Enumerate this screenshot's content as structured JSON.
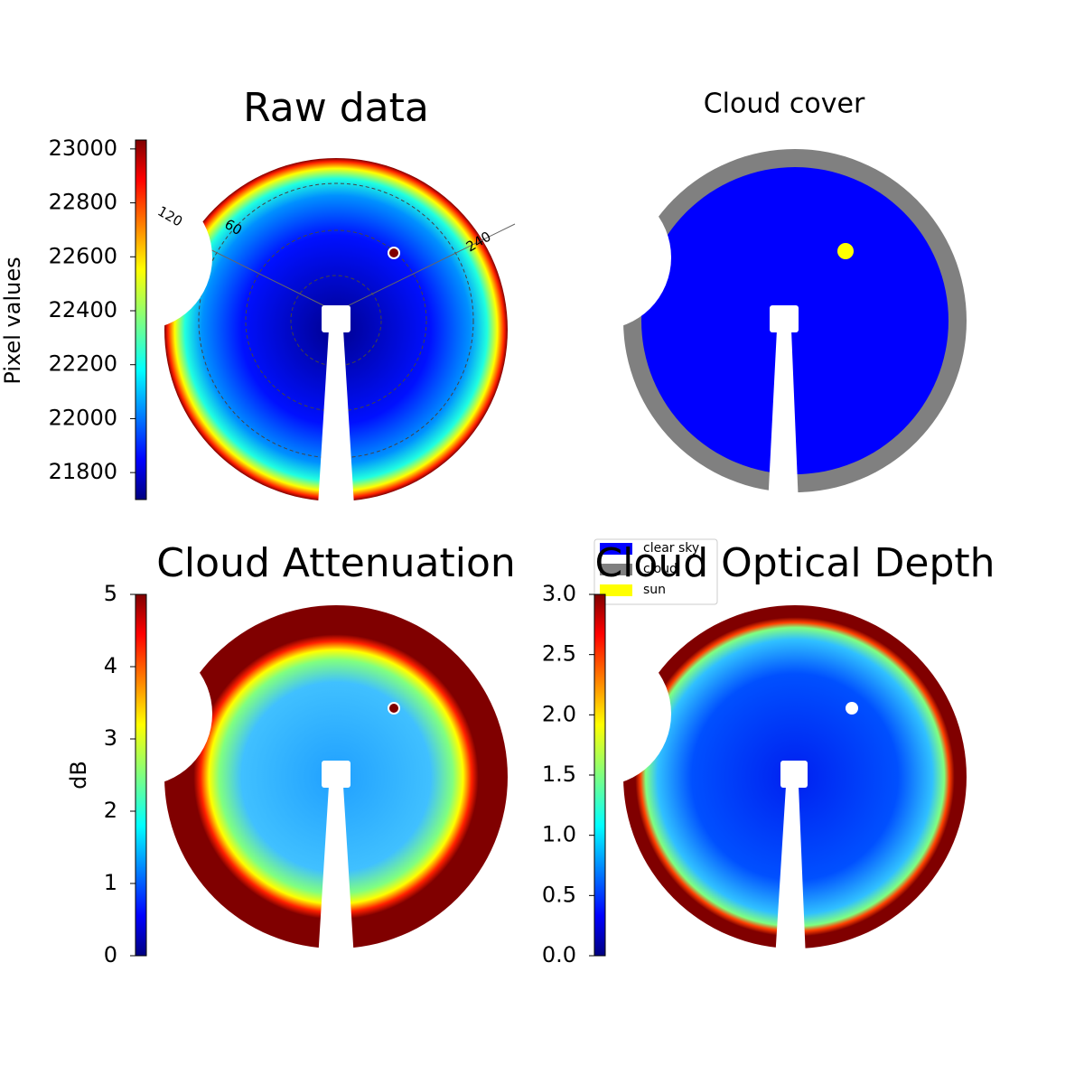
{
  "chart_data": [
    {
      "type": "image",
      "title": "Raw data",
      "colormap": "jet",
      "colorbar": {
        "label": "Pixel values",
        "lim": [
          21700,
          23033
        ],
        "ticks": [
          21800,
          22000,
          22200,
          22400,
          22600,
          22800,
          23000
        ]
      },
      "annotations": [
        "120",
        "60",
        "240"
      ]
    },
    {
      "type": "categorical-image",
      "title": "Cloud cover",
      "legend": [
        {
          "name": "clear sky",
          "color": "#0000ff"
        },
        {
          "name": "cloud",
          "color": "#808080"
        },
        {
          "name": "sun",
          "color": "#ffff00"
        }
      ]
    },
    {
      "type": "image",
      "title": "Cloud Attenuation",
      "colormap": "jet",
      "colorbar": {
        "label": "dB",
        "lim": [
          0,
          5
        ],
        "ticks": [
          0,
          1,
          2,
          3,
          4,
          5
        ]
      }
    },
    {
      "type": "image",
      "title": "Cloud Optical Depth",
      "colormap": "jet",
      "colorbar": {
        "lim": [
          0,
          3
        ],
        "ticks": [
          {
            "value": 0,
            "label": "0.0"
          },
          {
            "value": 0.5,
            "label": "0.5"
          },
          {
            "value": 1,
            "label": "1.0"
          },
          {
            "value": 1.5,
            "label": "1.5"
          },
          {
            "value": 2,
            "label": "2.0"
          },
          {
            "value": 2.5,
            "label": "2.5"
          },
          {
            "value": 3,
            "label": "3.0"
          }
        ]
      }
    }
  ]
}
